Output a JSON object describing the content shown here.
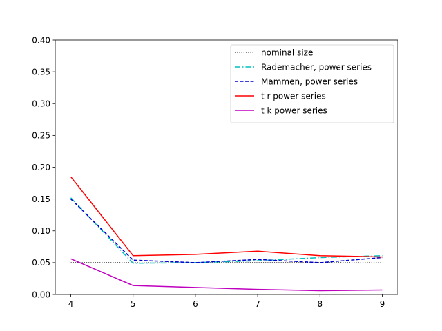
{
  "chart_data": {
    "type": "line",
    "title": "",
    "xlabel": "",
    "ylabel": "",
    "xlim": [
      3.75,
      9.25
    ],
    "ylim": [
      0.0,
      0.4
    ],
    "x": [
      4,
      5,
      6,
      7,
      8,
      9
    ],
    "x_ticks": [
      4,
      5,
      6,
      7,
      8,
      9
    ],
    "x_tick_labels": [
      "4",
      "5",
      "6",
      "7",
      "8",
      "9"
    ],
    "y_ticks": [
      0.0,
      0.05,
      0.1,
      0.15,
      0.2,
      0.25,
      0.3,
      0.35,
      0.4
    ],
    "y_tick_labels": [
      "0.00",
      "0.05",
      "0.10",
      "0.15",
      "0.20",
      "0.25",
      "0.30",
      "0.35",
      "0.40"
    ],
    "grid": false,
    "legend_position": "top-right",
    "series": [
      {
        "name": "nominal size",
        "color": "#000000",
        "dash": "dotted",
        "values": [
          0.05,
          0.05,
          0.05,
          0.05,
          0.05,
          0.05
        ]
      },
      {
        "name": "Rademacher, power series",
        "color": "#00bfbf",
        "dash": "dashdot",
        "values": [
          0.152,
          0.049,
          0.05,
          0.053,
          0.058,
          0.061
        ]
      },
      {
        "name": "Mammen, power series",
        "color": "#0000cc",
        "dash": "dashed",
        "values": [
          0.15,
          0.054,
          0.05,
          0.055,
          0.05,
          0.058
        ]
      },
      {
        "name": "t r power series",
        "color": "#ff0000",
        "dash": "solid",
        "values": [
          0.185,
          0.061,
          0.063,
          0.068,
          0.061,
          0.059
        ]
      },
      {
        "name": "t k power series",
        "color": "#bf00bf",
        "dash": "solid",
        "values": [
          0.056,
          0.014,
          0.011,
          0.008,
          0.006,
          0.007
        ]
      }
    ]
  }
}
